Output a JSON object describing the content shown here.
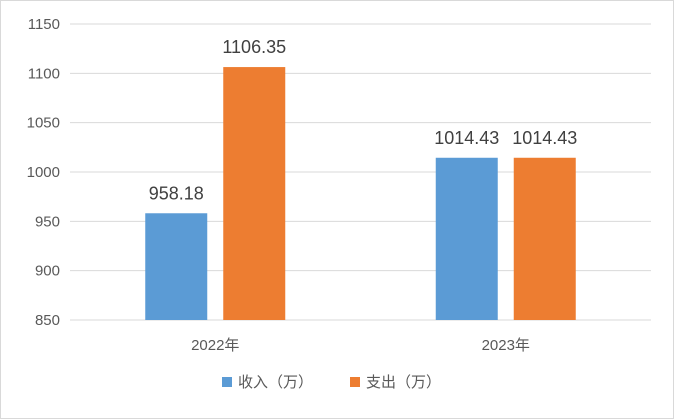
{
  "chart_data": {
    "type": "bar",
    "categories": [
      "2022年",
      "2023年"
    ],
    "series": [
      {
        "name": "收入（万）",
        "values": [
          958.18,
          1014.43
        ],
        "labels": [
          "958.18",
          "1014.43"
        ],
        "color": "#5b9bd5"
      },
      {
        "name": "支出（万）",
        "values": [
          1106.35,
          1014.43
        ],
        "labels": [
          "1106.35",
          "1014.43"
        ],
        "color": "#ed7d31"
      }
    ],
    "yticks": [
      "850",
      "900",
      "950",
      "1000",
      "1050",
      "1100",
      "1150"
    ],
    "ylim": [
      850,
      1150
    ],
    "grid": true,
    "legend": "bottom",
    "title": "",
    "xlabel": "",
    "ylabel": ""
  }
}
